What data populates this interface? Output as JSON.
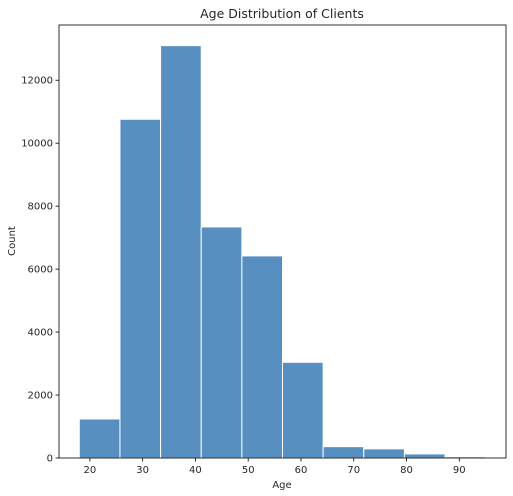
{
  "chart_data": {
    "type": "bar",
    "title": "Age Distribution of Clients",
    "xlabel": "Age",
    "ylabel": "Count",
    "bin_edges": [
      18,
      25.7,
      33.4,
      41.1,
      48.8,
      56.5,
      64.2,
      71.9,
      79.6,
      87.3,
      95
    ],
    "values": [
      1240,
      10760,
      13100,
      7340,
      6420,
      3040,
      360,
      290,
      130,
      40
    ],
    "xlim": [
      14.15,
      98.85
    ],
    "ylim": [
      0,
      13755
    ],
    "xticks": [
      20,
      30,
      40,
      50,
      60,
      70,
      80,
      90
    ],
    "yticks": [
      0,
      2000,
      4000,
      6000,
      8000,
      10000,
      12000
    ],
    "bar_color": "#5790c0",
    "edge_color": "#ffffff",
    "grid": false,
    "legend": "none"
  }
}
